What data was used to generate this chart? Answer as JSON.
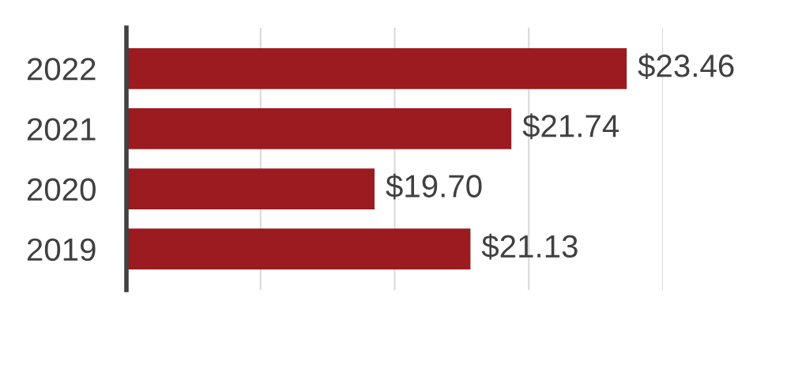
{
  "chart_data": {
    "type": "bar",
    "orientation": "horizontal",
    "categories": [
      "2022",
      "2021",
      "2020",
      "2019"
    ],
    "values": [
      23.46,
      21.74,
      19.7,
      21.13
    ],
    "value_labels": [
      "$23.46",
      "$21.74",
      "$19.70",
      "$21.13"
    ],
    "color": "#9b1b20",
    "xlim": [
      16,
      24
    ],
    "xticks": [
      {
        "value": 18,
        "label": null
      },
      {
        "value": 20,
        "label": null
      },
      {
        "value": 22,
        "label": null
      },
      {
        "value": 24,
        "label": null
      }
    ],
    "grid": "x",
    "tick_labels": "y"
  }
}
